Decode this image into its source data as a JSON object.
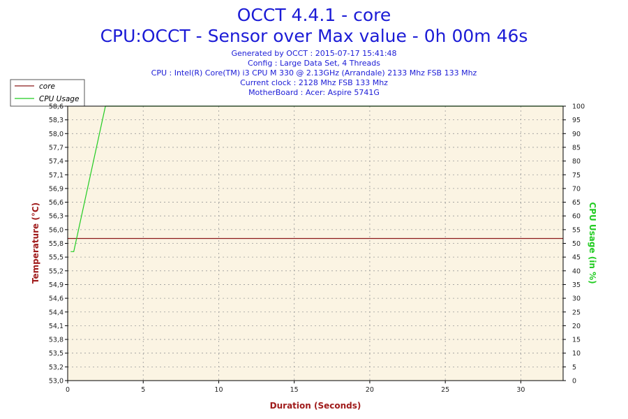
{
  "header": {
    "title": "OCCT 4.4.1 - core",
    "subtitle": "CPU:OCCT - Sensor over Max value - 0h 00m 46s",
    "info_lines": [
      "Generated by OCCT : 2015-07-17 15:41:48",
      "Config : Large Data Set, 4 Threads",
      "CPU : Intel(R) Core(TM) i3 CPU M 330 @ 2.13GHz (Arrandale) 2133 Mhz FSB 133 Mhz",
      "Current clock : 2128 Mhz FSB 133 Mhz",
      "MotherBoard : Acer: Aspire 5741G"
    ]
  },
  "chart_data": {
    "type": "line",
    "xlabel": "Duration (Seconds)",
    "ylabel_left": "Temperature (°C)",
    "ylabel_right": "CPU Usage (in %)",
    "xlim": [
      0,
      32.8
    ],
    "x_ticks": [
      0,
      5,
      10,
      15,
      20,
      25,
      30
    ],
    "ylim_left": [
      53.0,
      58.6
    ],
    "y_ticks_left": [
      "53,0",
      "53,2",
      "53,5",
      "53,8",
      "54,1",
      "54,4",
      "54,6",
      "54,9",
      "55,2",
      "55,5",
      "55,8",
      "56,0",
      "56,3",
      "56,6",
      "56,9",
      "57,1",
      "57,4",
      "57,7",
      "58,0",
      "58,3",
      "58,6"
    ],
    "ylim_right": [
      0,
      100
    ],
    "y_ticks_right": [
      0,
      5,
      10,
      15,
      20,
      25,
      30,
      35,
      40,
      45,
      50,
      55,
      60,
      65,
      70,
      75,
      80,
      85,
      90,
      95,
      100
    ],
    "grid": true,
    "legend": {
      "placement": "top-left",
      "items": [
        {
          "name": "core",
          "color": "#8b1a1a"
        },
        {
          "name": "CPU Usage",
          "color": "#22cc22"
        }
      ]
    },
    "series": [
      {
        "name": "core",
        "axis": "left",
        "color": "#8b1a1a",
        "x": [
          0,
          32.8
        ],
        "y": [
          55.9,
          55.9
        ]
      },
      {
        "name": "CPU Usage",
        "axis": "right",
        "color": "#22cc22",
        "x": [
          0.2,
          0.4,
          2.5,
          32.8
        ],
        "y": [
          47,
          47,
          100,
          100
        ]
      }
    ]
  },
  "colors": {
    "plot_background": "#fbf4e3",
    "grid": "#9a9a9a",
    "left_axis_label": "#a01c1c",
    "right_axis_label": "#22cc22",
    "title": "#1b1bd6"
  }
}
